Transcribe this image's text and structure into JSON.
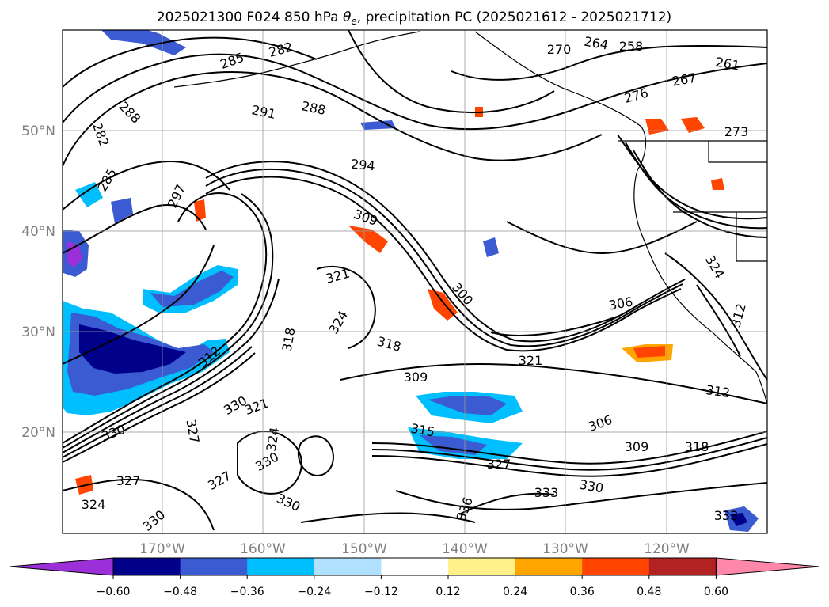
{
  "title_prefix": "2025021300 F024 850 hPa ",
  "title_symbol": "θ",
  "title_symbol_sub": "e",
  "title_suffix": ", precipitation PC (2025021612 - 2025021712)",
  "lat_labels": [
    "50°N",
    "40°N",
    "30°N",
    "20°N"
  ],
  "lon_labels": [
    "170°W",
    "160°W",
    "150°W",
    "140°W",
    "130°W",
    "120°W"
  ],
  "contour_labels": [
    "285",
    "282",
    "264",
    "258",
    "270",
    "261",
    "267",
    "276",
    "273",
    "288",
    "291",
    "288",
    "282",
    "294",
    "285",
    "297",
    "309",
    "321",
    "300",
    "306",
    "318",
    "321",
    "309",
    "312",
    "330",
    "327",
    "315",
    "306",
    "309",
    "318",
    "327",
    "333",
    "330",
    "336",
    "330",
    "324",
    "330",
    "333",
    "327",
    "312",
    "330",
    "321",
    "324",
    "318",
    "324",
    "330",
    "327",
    "324",
    "312"
  ],
  "colorbar": {
    "colors": [
      "#9b30d9",
      "#00008b",
      "#3a5bd1",
      "#00bfff",
      "#b0e2ff",
      "#ffffff",
      "#fff08a",
      "#ffa500",
      "#ff4500",
      "#b22222",
      "#ff88aa"
    ],
    "tick_labels": [
      "−0.60",
      "−0.48",
      "−0.36",
      "−0.24",
      "−0.12",
      "0.12",
      "0.24",
      "0.36",
      "0.48",
      "0.60"
    ]
  }
}
